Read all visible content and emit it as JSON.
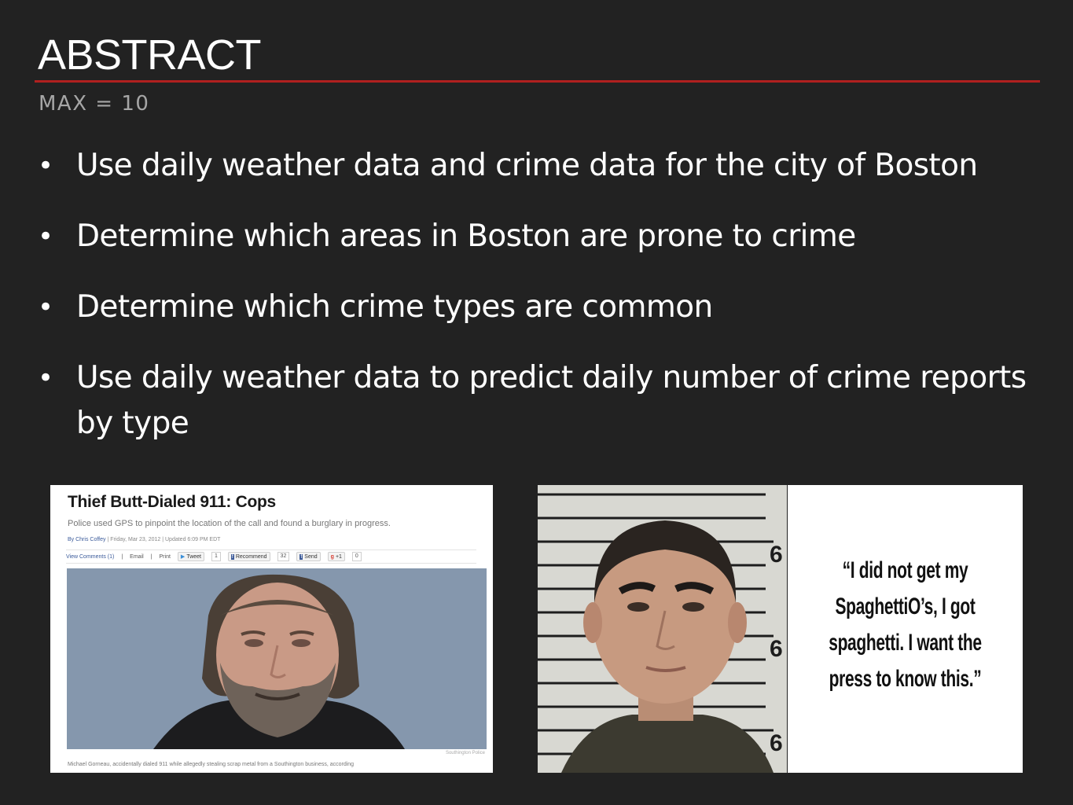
{
  "slide": {
    "title": "ABSTRACT",
    "subtitle": "MAX = 10",
    "bullets": [
      "Use daily weather data and crime data for the city of Boston",
      "Determine which areas in Boston are prone to crime",
      "Determine which crime types are common",
      "Use daily weather data to predict daily number of crime reports by type"
    ]
  },
  "news_article": {
    "headline": "Thief Butt-Dialed 911: Cops",
    "dek": "Police used GPS to pinpoint the location of the call and found a burglary in progress.",
    "byline_author": "By Chris Coffey",
    "byline_date": "| Friday, Mar 23, 2012 | Updated 6:09 PM EDT",
    "toolbar": {
      "comments": "View Comments (1)",
      "email": "Email",
      "print": "Print",
      "tweet": "Tweet",
      "tweet_count": "1",
      "recommend": "Recommend",
      "recommend_count": "32",
      "send": "Send",
      "plus_one": "+1",
      "plus_one_count": "0"
    },
    "photo_credit": "Southington Police",
    "caption": "Michael Gorneau, accidentally dialed 911 while allegedly stealing scrap metal from a Southington business, according"
  },
  "mugshot": {
    "height_marks": [
      "6",
      "6",
      "6"
    ]
  },
  "quote": {
    "text": "“I did not get my SpaghettiO’s, I got spaghetti. I want the press to know this.”"
  },
  "colors": {
    "background": "#222222",
    "accent_rule": "#b0201f",
    "subtitle": "#a6a6a6"
  }
}
